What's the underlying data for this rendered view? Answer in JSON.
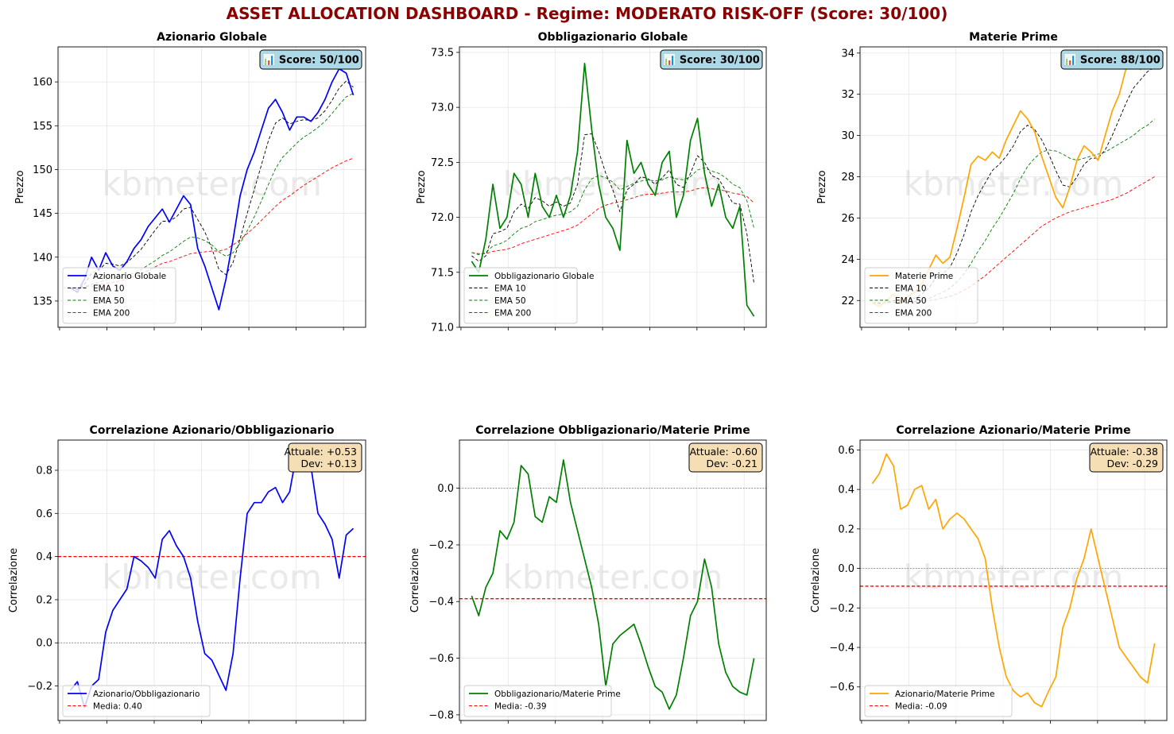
{
  "title": "ASSET ALLOCATION DASHBOARD - Regime: MODERATO RISK-OFF  (Score: 30/100)",
  "watermark": "kbmeter.com",
  "colors": {
    "title": "#8b0000",
    "equity": "#0000ff",
    "bond": "#008000",
    "commodity": "#ffa500",
    "ema10": "#000000",
    "ema50": "#008000",
    "ema200": "#ff0000",
    "score_box": "#add8e6",
    "stats_box": "#f5deb3"
  },
  "chart_data": [
    {
      "type": "line",
      "title": "Azionario Globale",
      "ylabel": "Prezzo",
      "ylim": [
        132,
        164
      ],
      "yticks": [
        135,
        140,
        145,
        150,
        155,
        160
      ],
      "grid": true,
      "legend_position": "lower-left",
      "badge": "📊 Score: 50/100",
      "series": [
        {
          "name": "Azionario Globale",
          "style": "solid",
          "color": "#0000ff",
          "values": [
            136.5,
            136.0,
            137.5,
            140.0,
            138.5,
            140.5,
            139.0,
            138.5,
            139.5,
            141.0,
            142.0,
            143.5,
            144.5,
            145.5,
            144.0,
            145.5,
            147.0,
            146.0,
            141.0,
            139.0,
            136.5,
            134.0,
            137.5,
            142.0,
            147.0,
            150.0,
            152.0,
            154.5,
            157.0,
            158.0,
            156.5,
            154.5,
            156.0,
            156.0,
            155.5,
            156.5,
            158.0,
            160.0,
            161.5,
            161.0,
            158.5
          ]
        },
        {
          "name": "EMA 10",
          "style": "dashed",
          "color": "#000000",
          "values": [
            136.4,
            136.3,
            136.9,
            138.2,
            138.5,
            139.3,
            139.2,
            139.0,
            139.4,
            140.1,
            140.9,
            142.0,
            143.1,
            144.1,
            144.1,
            144.6,
            145.5,
            145.7,
            144.3,
            142.9,
            141.0,
            138.6,
            138.0,
            139.4,
            142.1,
            145.0,
            147.7,
            150.5,
            153.3,
            155.3,
            155.9,
            155.2,
            155.5,
            155.7,
            155.6,
            155.9,
            156.7,
            157.9,
            159.3,
            160.1,
            159.4
          ]
        },
        {
          "name": "EMA 50",
          "style": "dashed",
          "color": "#008000",
          "values": [
            136.5,
            136.5,
            136.6,
            136.9,
            137.1,
            137.4,
            137.6,
            137.7,
            137.9,
            138.2,
            138.6,
            139.1,
            139.6,
            140.2,
            140.6,
            141.2,
            141.8,
            142.3,
            142.2,
            141.9,
            141.4,
            140.6,
            140.1,
            140.5,
            141.6,
            143.0,
            144.6,
            146.4,
            148.3,
            150.1,
            151.4,
            152.2,
            153.0,
            153.7,
            154.2,
            154.8,
            155.5,
            156.4,
            157.4,
            158.3,
            158.7
          ]
        },
        {
          "name": "EMA 200",
          "style": "dashed",
          "color": "#ff0000",
          "values": [
            136.5,
            136.5,
            136.6,
            136.7,
            136.8,
            137.0,
            137.1,
            137.3,
            137.5,
            137.8,
            138.1,
            138.5,
            138.9,
            139.3,
            139.5,
            139.8,
            140.1,
            140.4,
            140.5,
            140.6,
            140.7,
            140.7,
            140.9,
            141.4,
            142.0,
            142.7,
            143.4,
            144.2,
            145.0,
            145.8,
            146.5,
            147.0,
            147.6,
            148.2,
            148.7,
            149.2,
            149.7,
            150.2,
            150.6,
            151.0,
            151.3
          ]
        }
      ]
    },
    {
      "type": "line",
      "title": "Obbligazionario Globale",
      "ylabel": "Prezzo",
      "ylim": [
        71.0,
        73.55
      ],
      "yticks": [
        71.0,
        71.5,
        72.0,
        72.5,
        73.0,
        73.5
      ],
      "grid": true,
      "legend_position": "lower-left",
      "badge": "📊 Score: 30/100",
      "series": [
        {
          "name": "Obbligazionario Globale",
          "style": "solid",
          "color": "#008000",
          "values": [
            71.6,
            71.5,
            71.8,
            72.3,
            71.9,
            72.0,
            72.4,
            72.3,
            72.0,
            72.4,
            72.1,
            72.0,
            72.2,
            72.0,
            72.2,
            72.6,
            73.4,
            72.8,
            72.3,
            72.0,
            71.9,
            71.7,
            72.7,
            72.4,
            72.5,
            72.3,
            72.2,
            72.5,
            72.6,
            72.0,
            72.2,
            72.7,
            72.9,
            72.4,
            72.1,
            72.3,
            72.0,
            71.9,
            72.1,
            71.2,
            71.1
          ]
        },
        {
          "name": "EMA 10",
          "style": "dashed",
          "color": "#000000",
          "values": [
            71.65,
            71.6,
            71.65,
            71.85,
            71.87,
            71.9,
            72.05,
            72.12,
            72.08,
            72.18,
            72.15,
            72.1,
            72.14,
            72.1,
            72.13,
            72.3,
            72.75,
            72.76,
            72.6,
            72.4,
            72.25,
            72.05,
            72.25,
            72.3,
            72.37,
            72.35,
            72.3,
            72.36,
            72.43,
            72.3,
            72.27,
            72.4,
            72.56,
            72.5,
            72.38,
            72.35,
            72.24,
            72.13,
            72.12,
            71.85,
            71.4
          ]
        },
        {
          "name": "EMA 50",
          "style": "dashed",
          "color": "#008000",
          "values": [
            71.68,
            71.66,
            71.68,
            71.74,
            71.76,
            71.79,
            71.85,
            71.9,
            71.92,
            71.96,
            71.98,
            72.0,
            72.02,
            72.03,
            72.05,
            72.1,
            72.25,
            72.35,
            72.38,
            72.36,
            72.32,
            72.25,
            72.28,
            72.31,
            72.33,
            72.34,
            72.33,
            72.34,
            72.37,
            72.35,
            72.34,
            72.37,
            72.43,
            72.45,
            72.42,
            72.4,
            72.36,
            72.3,
            72.27,
            72.15,
            71.9
          ]
        },
        {
          "name": "EMA 200",
          "style": "dashed",
          "color": "#ff0000",
          "values": [
            71.68,
            71.67,
            71.67,
            71.69,
            71.7,
            71.71,
            71.73,
            71.76,
            71.78,
            71.8,
            71.82,
            71.84,
            71.86,
            71.88,
            71.9,
            71.93,
            71.98,
            72.03,
            72.08,
            72.11,
            72.13,
            72.14,
            72.16,
            72.18,
            72.2,
            72.21,
            72.21,
            72.22,
            72.23,
            72.23,
            72.23,
            72.24,
            72.26,
            72.27,
            72.26,
            72.25,
            72.24,
            72.22,
            72.21,
            72.19,
            72.13
          ]
        }
      ]
    },
    {
      "type": "line",
      "title": "Materie Prime",
      "ylabel": "Prezzo",
      "ylim": [
        20.7,
        34.3
      ],
      "yticks": [
        22,
        24,
        26,
        28,
        30,
        32,
        34
      ],
      "grid": true,
      "legend_position": "lower-left",
      "badge": "📊 Score: 88/100",
      "series": [
        {
          "name": "Materie Prime",
          "style": "solid",
          "color": "#ffa500",
          "values": [
            21.9,
            21.7,
            22.0,
            22.3,
            21.9,
            22.2,
            22.4,
            22.8,
            23.5,
            24.2,
            23.8,
            24.1,
            25.5,
            27.0,
            28.6,
            29.0,
            28.8,
            29.2,
            28.9,
            29.8,
            30.5,
            31.2,
            30.8,
            30.2,
            29.0,
            28.0,
            27.0,
            26.5,
            27.5,
            28.8,
            29.5,
            29.2,
            28.8,
            30.0,
            31.2,
            32.0,
            33.3,
            33.5,
            33.2,
            33.8,
            33.5
          ]
        },
        {
          "name": "EMA 10",
          "style": "dashed",
          "color": "#000000",
          "values": [
            21.9,
            21.85,
            21.9,
            22.0,
            21.98,
            22.03,
            22.11,
            22.3,
            22.6,
            23.1,
            23.3,
            23.6,
            24.3,
            25.2,
            26.3,
            27.1,
            27.7,
            28.3,
            28.6,
            29.0,
            29.5,
            30.2,
            30.5,
            30.3,
            29.8,
            29.1,
            28.3,
            27.6,
            27.5,
            28.0,
            28.6,
            28.9,
            28.9,
            29.3,
            30.0,
            30.8,
            31.6,
            32.3,
            32.7,
            33.1,
            33.3
          ]
        },
        {
          "name": "EMA 50",
          "style": "dashed",
          "color": "#008000",
          "values": [
            21.9,
            21.89,
            21.9,
            21.92,
            21.92,
            21.93,
            21.96,
            22.0,
            22.1,
            22.25,
            22.4,
            22.6,
            22.9,
            23.3,
            23.8,
            24.4,
            24.9,
            25.5,
            26.0,
            26.6,
            27.2,
            27.9,
            28.5,
            28.9,
            29.2,
            29.3,
            29.25,
            29.1,
            28.9,
            28.8,
            28.9,
            29.0,
            29.1,
            29.2,
            29.4,
            29.6,
            29.8,
            30.0,
            30.3,
            30.5,
            30.8
          ]
        },
        {
          "name": "EMA 200",
          "style": "dashed",
          "color": "#ff0000",
          "values": [
            21.9,
            21.9,
            21.9,
            21.91,
            21.91,
            21.92,
            21.93,
            21.95,
            21.99,
            22.05,
            22.12,
            22.2,
            22.33,
            22.5,
            22.7,
            22.95,
            23.2,
            23.5,
            23.8,
            24.1,
            24.4,
            24.7,
            25.0,
            25.3,
            25.6,
            25.8,
            26.0,
            26.15,
            26.3,
            26.4,
            26.5,
            26.6,
            26.7,
            26.8,
            26.9,
            27.05,
            27.2,
            27.4,
            27.6,
            27.8,
            28.0
          ]
        }
      ]
    },
    {
      "type": "line",
      "title": "Correlazione Azionario/Obbligazionario",
      "ylabel": "Correlazione",
      "ylim": [
        -0.36,
        0.94
      ],
      "yticks": [
        -0.2,
        0.0,
        0.2,
        0.4,
        0.6,
        0.8
      ],
      "grid": true,
      "legend_position": "lower-left",
      "stats_box": [
        "Attuale: +0.53",
        "Dev: +0.13"
      ],
      "zero_line": 0.0,
      "series": [
        {
          "name": "Azionario/Obbligazionario",
          "style": "solid",
          "color": "#0000ff",
          "values": [
            -0.22,
            -0.18,
            -0.3,
            -0.2,
            -0.17,
            0.05,
            0.15,
            0.2,
            0.25,
            0.4,
            0.38,
            0.35,
            0.3,
            0.48,
            0.52,
            0.45,
            0.4,
            0.3,
            0.1,
            -0.05,
            -0.08,
            -0.15,
            -0.22,
            -0.05,
            0.3,
            0.6,
            0.65,
            0.65,
            0.7,
            0.72,
            0.65,
            0.7,
            0.88,
            0.87,
            0.82,
            0.6,
            0.55,
            0.48,
            0.3,
            0.5,
            0.53
          ]
        },
        {
          "name": "Media: 0.40",
          "style": "dashed",
          "color": "#ff0000",
          "values": [
            0.4,
            0.4,
            0.4,
            0.4,
            0.4,
            0.4,
            0.4,
            0.4,
            0.4,
            0.4,
            0.4,
            0.4,
            0.4,
            0.4,
            0.4,
            0.4,
            0.4,
            0.4,
            0.4,
            0.4,
            0.4,
            0.4,
            0.4,
            0.4,
            0.4,
            0.4,
            0.4,
            0.4,
            0.4,
            0.4,
            0.4,
            0.4,
            0.4,
            0.4,
            0.4,
            0.4,
            0.4,
            0.4,
            0.4,
            0.4,
            0.4
          ]
        }
      ]
    },
    {
      "type": "line",
      "title": "Correlazione Obbligazionario/Materie Prime",
      "ylabel": "Correlazione",
      "ylim": [
        -0.82,
        0.17
      ],
      "yticks": [
        -0.8,
        -0.6,
        -0.4,
        -0.2,
        0.0
      ],
      "grid": true,
      "legend_position": "lower-left",
      "stats_box": [
        "Attuale: -0.60",
        "Dev: -0.21"
      ],
      "zero_line": 0.0,
      "series": [
        {
          "name": "Obbligazionario/Materie Prime",
          "style": "solid",
          "color": "#008000",
          "values": [
            -0.38,
            -0.45,
            -0.35,
            -0.3,
            -0.15,
            -0.18,
            -0.12,
            0.08,
            0.05,
            -0.1,
            -0.12,
            -0.03,
            -0.05,
            0.1,
            -0.05,
            -0.15,
            -0.25,
            -0.35,
            -0.48,
            -0.7,
            -0.55,
            -0.52,
            -0.5,
            -0.48,
            -0.55,
            -0.63,
            -0.7,
            -0.72,
            -0.78,
            -0.73,
            -0.6,
            -0.45,
            -0.4,
            -0.25,
            -0.35,
            -0.55,
            -0.65,
            -0.7,
            -0.72,
            -0.73,
            -0.6
          ]
        },
        {
          "name": "Media: -0.39",
          "style": "dashed",
          "color": "#ff0000",
          "values": [
            -0.39,
            -0.39,
            -0.39,
            -0.39,
            -0.39,
            -0.39,
            -0.39,
            -0.39,
            -0.39,
            -0.39,
            -0.39,
            -0.39,
            -0.39,
            -0.39,
            -0.39,
            -0.39,
            -0.39,
            -0.39,
            -0.39,
            -0.39,
            -0.39,
            -0.39,
            -0.39,
            -0.39,
            -0.39,
            -0.39,
            -0.39,
            -0.39,
            -0.39,
            -0.39,
            -0.39,
            -0.39,
            -0.39,
            -0.39,
            -0.39,
            -0.39,
            -0.39,
            -0.39,
            -0.39,
            -0.39,
            -0.39
          ]
        }
      ]
    },
    {
      "type": "line",
      "title": "Correlazione Azionario/Materie Prime",
      "ylabel": "Correlazione",
      "ylim": [
        -0.77,
        0.65
      ],
      "yticks": [
        -0.6,
        -0.4,
        -0.2,
        0.0,
        0.2,
        0.4,
        0.6
      ],
      "grid": true,
      "legend_position": "lower-left",
      "stats_box": [
        "Attuale: -0.38",
        "Dev: -0.29"
      ],
      "zero_line": 0.0,
      "series": [
        {
          "name": "Azionario/Materie Prime",
          "style": "solid",
          "color": "#ffa500",
          "values": [
            0.43,
            0.48,
            0.58,
            0.52,
            0.3,
            0.32,
            0.4,
            0.42,
            0.3,
            0.35,
            0.2,
            0.25,
            0.28,
            0.25,
            0.2,
            0.15,
            0.05,
            -0.2,
            -0.4,
            -0.55,
            -0.62,
            -0.65,
            -0.63,
            -0.68,
            -0.7,
            -0.62,
            -0.55,
            -0.3,
            -0.2,
            -0.05,
            0.05,
            0.2,
            0.05,
            -0.1,
            -0.25,
            -0.4,
            -0.45,
            -0.5,
            -0.55,
            -0.58,
            -0.38
          ]
        },
        {
          "name": "Media: -0.09",
          "style": "dashed",
          "color": "#ff0000",
          "values": [
            -0.09,
            -0.09,
            -0.09,
            -0.09,
            -0.09,
            -0.09,
            -0.09,
            -0.09,
            -0.09,
            -0.09,
            -0.09,
            -0.09,
            -0.09,
            -0.09,
            -0.09,
            -0.09,
            -0.09,
            -0.09,
            -0.09,
            -0.09,
            -0.09,
            -0.09,
            -0.09,
            -0.09,
            -0.09,
            -0.09,
            -0.09,
            -0.09,
            -0.09,
            -0.09,
            -0.09,
            -0.09,
            -0.09,
            -0.09,
            -0.09,
            -0.09,
            -0.09,
            -0.09,
            -0.09,
            -0.09,
            -0.09
          ]
        }
      ]
    }
  ]
}
